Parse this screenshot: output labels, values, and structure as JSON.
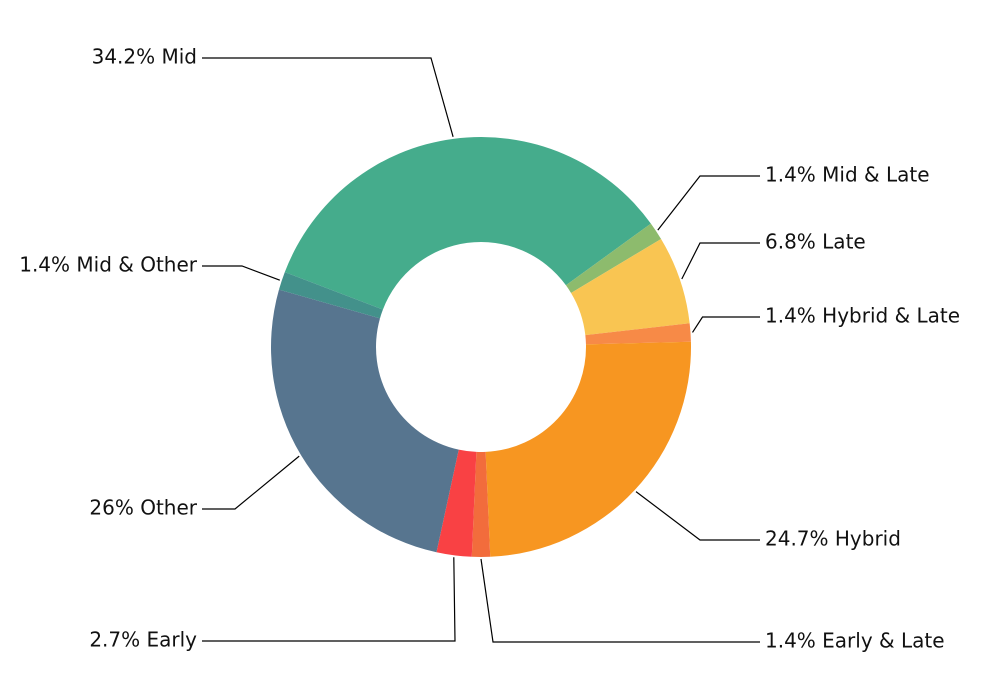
{
  "chart_data": {
    "type": "pie",
    "donut": true,
    "slices": [
      {
        "name": "Mid",
        "value": 34.2,
        "label": "34.2% Mid",
        "color": "#45ac8c"
      },
      {
        "name": "Mid & Late",
        "value": 1.4,
        "label": "1.4% Mid & Late",
        "color": "#8dbb6d"
      },
      {
        "name": "Late",
        "value": 6.8,
        "label": "6.8% Late",
        "color": "#f9c552"
      },
      {
        "name": "Hybrid & Late",
        "value": 1.4,
        "label": "1.4% Hybrid & Late",
        "color": "#f78a47"
      },
      {
        "name": "Hybrid",
        "value": 24.7,
        "label": "24.7% Hybrid",
        "color": "#f79621"
      },
      {
        "name": "Early & Late",
        "value": 1.4,
        "label": "1.4% Early & Late",
        "color": "#f26c3c"
      },
      {
        "name": "Early",
        "value": 2.7,
        "label": "2.7% Early",
        "color": "#f94144"
      },
      {
        "name": "Other",
        "value": 26,
        "label": "26% Other",
        "color": "#57758f"
      },
      {
        "name": "Mid & Other",
        "value": 1.4,
        "label": "1.4% Mid & Other",
        "color": "#43918b"
      }
    ]
  }
}
